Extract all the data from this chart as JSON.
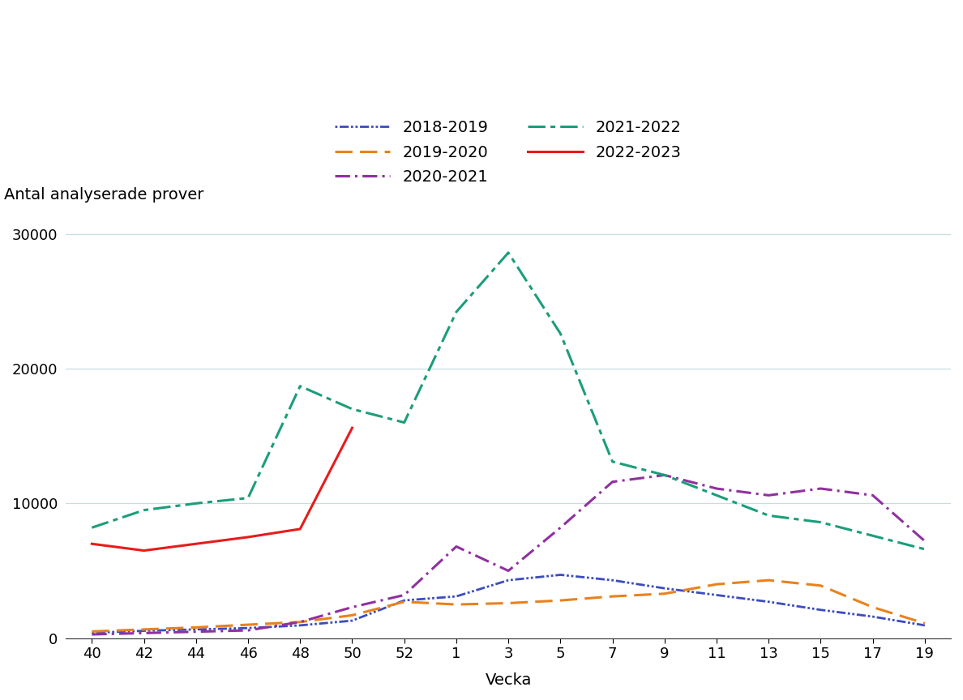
{
  "x_labels": [
    "40",
    "42",
    "44",
    "46",
    "48",
    "50",
    "52",
    "1",
    "3",
    "5",
    "7",
    "9",
    "11",
    "13",
    "15",
    "17",
    "19"
  ],
  "series": [
    {
      "label": "2018-2019",
      "color": "#3b4cc0",
      "linestyle": "dotted_dash",
      "linewidth": 2.0,
      "values": [
        400,
        550,
        650,
        750,
        950,
        1300,
        2800,
        3100,
        4300,
        4700,
        4300,
        3700,
        3200,
        2700,
        2100,
        1600,
        950
      ]
    },
    {
      "label": "2019-2020",
      "color": "#e8821e",
      "linestyle": "long_dash",
      "linewidth": 2.2,
      "values": [
        500,
        650,
        800,
        1000,
        1200,
        1700,
        2700,
        2500,
        2600,
        2800,
        3100,
        3300,
        4000,
        4300,
        3900,
        2300,
        1100
      ]
    },
    {
      "label": "2020-2021",
      "color": "#9030a0",
      "linestyle": "long_dash_dot",
      "linewidth": 2.2,
      "values": [
        280,
        380,
        480,
        580,
        1200,
        2300,
        3200,
        6800,
        5000,
        8200,
        11600,
        12100,
        11100,
        10600,
        11100,
        10600,
        7200
      ]
    },
    {
      "label": "2021-2022",
      "color": "#1a9e7a",
      "linestyle": "long_dash_dot2",
      "linewidth": 2.2,
      "values": [
        8200,
        9500,
        10000,
        10400,
        18700,
        17000,
        16000,
        24200,
        28600,
        22600,
        13100,
        12100,
        10600,
        9100,
        8600,
        7600,
        6600
      ]
    },
    {
      "label": "2022-2023",
      "color": "#e81b1b",
      "linestyle": "solid",
      "linewidth": 2.2,
      "values": [
        7000,
        6500,
        7000,
        7500,
        8100,
        15600,
        null,
        null,
        null,
        null,
        null,
        null,
        null,
        null,
        null,
        null,
        null
      ]
    }
  ],
  "ylabel": "Antal analyserade prover",
  "xlabel": "Vecka",
  "ylim": [
    0,
    32000
  ],
  "yticks": [
    0,
    10000,
    20000,
    30000
  ],
  "background_color": "#ffffff",
  "grid_color": "#c8dde0",
  "spine_color": "#333333",
  "tick_fontsize": 13,
  "label_fontsize": 14
}
